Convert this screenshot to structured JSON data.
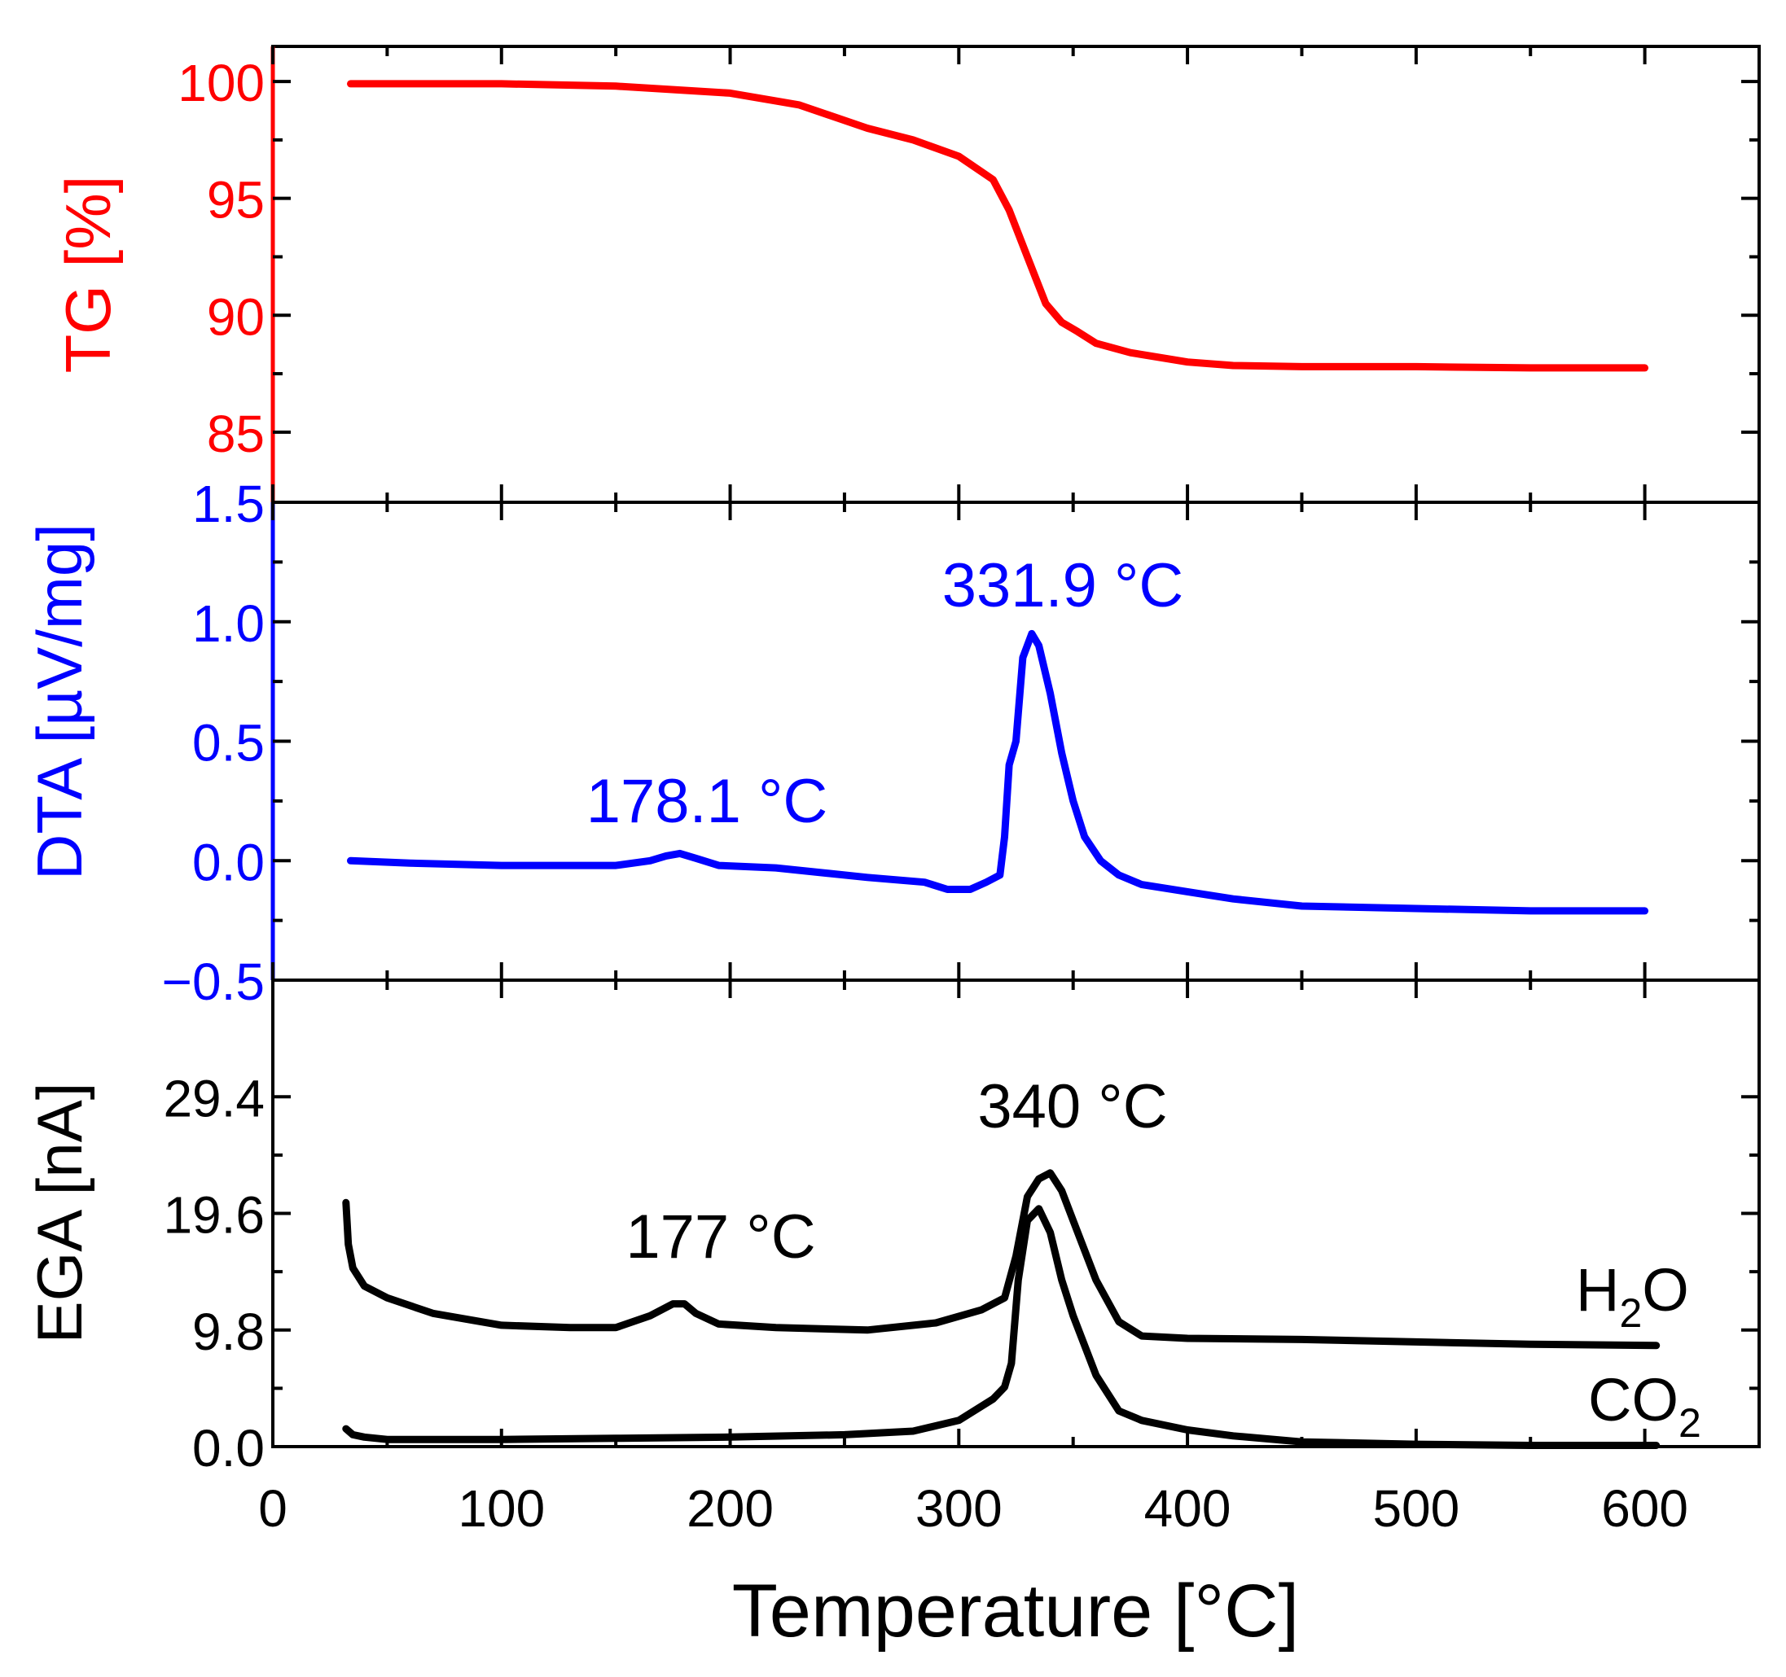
{
  "chart_data": [
    {
      "type": "line",
      "panel": "top",
      "ylabel": "TG [%]",
      "ylim": [
        82,
        101.5
      ],
      "yticks": [
        "85",
        "90",
        "95",
        "100"
      ],
      "color": "#ff0000",
      "series": [
        {
          "name": "TG",
          "x": [
            34,
            60,
            100,
            150,
            200,
            230,
            260,
            280,
            300,
            315,
            322,
            330,
            338,
            345,
            352,
            360,
            375,
            400,
            420,
            450,
            500,
            550,
            600
          ],
          "y": [
            99.9,
            99.9,
            99.9,
            99.8,
            99.5,
            99.0,
            98.0,
            97.5,
            96.8,
            95.8,
            94.5,
            92.5,
            90.5,
            89.7,
            89.3,
            88.8,
            88.4,
            88.0,
            87.85,
            87.8,
            87.8,
            87.75,
            87.75
          ]
        }
      ]
    },
    {
      "type": "line",
      "panel": "middle",
      "ylabel": "DTA [µV/mg]",
      "ylim": [
        -0.5,
        1.5
      ],
      "yticks": [
        "1.5",
        "1.0",
        "0.5",
        "0.0",
        "−0.5"
      ],
      "color": "#0000ff",
      "annotations": [
        "178.1 °C",
        "331.9 °C"
      ],
      "series": [
        {
          "name": "DTA",
          "x": [
            34,
            60,
            100,
            150,
            165,
            172,
            178,
            185,
            195,
            220,
            260,
            285,
            295,
            305,
            312,
            318,
            320,
            322,
            325,
            328,
            331.9,
            335,
            340,
            345,
            350,
            355,
            362,
            370,
            380,
            400,
            420,
            450,
            500,
            550,
            600
          ],
          "y": [
            0.0,
            -0.01,
            -0.02,
            -0.02,
            0.0,
            0.02,
            0.03,
            0.01,
            -0.02,
            -0.03,
            -0.07,
            -0.09,
            -0.12,
            -0.12,
            -0.09,
            -0.06,
            0.1,
            0.4,
            0.5,
            0.85,
            0.95,
            0.9,
            0.7,
            0.45,
            0.25,
            0.1,
            0.0,
            -0.06,
            -0.1,
            -0.13,
            -0.16,
            -0.19,
            -0.2,
            -0.21,
            -0.21
          ]
        }
      ]
    },
    {
      "type": "line",
      "panel": "bottom",
      "xlabel": "Temperature [°C]",
      "ylabel": "EGA [nA]",
      "xlim": [
        0,
        650
      ],
      "xticks": [
        "0",
        "100",
        "200",
        "300",
        "400",
        "500",
        "600"
      ],
      "ylim": [
        0.0,
        39.2
      ],
      "yticks": [
        "0.0",
        "9.8",
        "19.6",
        "29.4"
      ],
      "color": "#000000",
      "annotations": [
        "177 °C",
        "340 °C"
      ],
      "series": [
        {
          "name": "H2O",
          "x": [
            32,
            33,
            35,
            40,
            50,
            70,
            100,
            130,
            150,
            165,
            175,
            180,
            185,
            195,
            220,
            260,
            290,
            310,
            320,
            325,
            330,
            335,
            340,
            345,
            350,
            360,
            370,
            380,
            400,
            450,
            500,
            550,
            605
          ],
          "y": [
            20.5,
            17.0,
            15.0,
            13.5,
            12.5,
            11.2,
            10.2,
            10.0,
            10.0,
            11.0,
            12.0,
            12.0,
            11.2,
            10.3,
            10.0,
            9.8,
            10.4,
            11.5,
            12.5,
            16.0,
            21.0,
            22.5,
            23.0,
            21.5,
            19.0,
            14.0,
            10.5,
            9.3,
            9.1,
            9.0,
            8.8,
            8.6,
            8.5
          ]
        },
        {
          "name": "CO2",
          "x": [
            32,
            35,
            40,
            50,
            100,
            150,
            200,
            250,
            280,
            300,
            315,
            320,
            323,
            326,
            330,
            335,
            340,
            345,
            350,
            360,
            370,
            380,
            400,
            420,
            450,
            500,
            550,
            605
          ],
          "y": [
            1.5,
            1.0,
            0.8,
            0.6,
            0.6,
            0.7,
            0.8,
            1.0,
            1.3,
            2.2,
            4.0,
            5.0,
            7.0,
            14.0,
            19.0,
            20.0,
            18.0,
            14.0,
            11.0,
            6.0,
            3.0,
            2.2,
            1.4,
            0.9,
            0.4,
            0.2,
            0.1,
            0.1
          ]
        }
      ],
      "series_labels": {
        "h2o_main": "H",
        "h2o_sub": "2",
        "h2o_end": "O",
        "co2_main": "CO",
        "co2_sub": "2"
      }
    }
  ],
  "colors": {
    "tg": "#ff0000",
    "dta": "#0000ff",
    "ega": "#000000"
  }
}
